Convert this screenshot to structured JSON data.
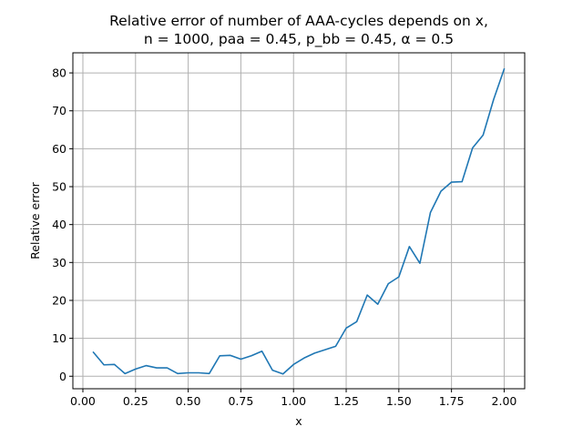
{
  "chart_data": {
    "type": "line",
    "title_lines": [
      "Relative error of number of AAA-cycles depends on x,",
      "n = 1000, paa = 0.45, p_bb = 0.45, α = 0.5"
    ],
    "xlabel": "x",
    "ylabel": "Relative error",
    "xlim": [
      -0.0475,
      2.0975
    ],
    "ylim": [
      -3.3,
      85.3
    ],
    "x_ticks": [
      0.0,
      0.25,
      0.5,
      0.75,
      1.0,
      1.25,
      1.5,
      1.75,
      2.0
    ],
    "x_tick_labels": [
      "0.00",
      "0.25",
      "0.50",
      "0.75",
      "1.00",
      "1.25",
      "1.50",
      "1.75",
      "2.00"
    ],
    "y_ticks": [
      0,
      10,
      20,
      30,
      40,
      50,
      60,
      70,
      80
    ],
    "y_tick_labels": [
      "0",
      "10",
      "20",
      "30",
      "40",
      "50",
      "60",
      "70",
      "80"
    ],
    "grid": true,
    "line_color": "#1f77b4",
    "series": [
      {
        "x": [
          0.05,
          0.1,
          0.15,
          0.2,
          0.25,
          0.3,
          0.35,
          0.4,
          0.45,
          0.5,
          0.55,
          0.6,
          0.65,
          0.7,
          0.75,
          0.8,
          0.85,
          0.9,
          0.95,
          1.0,
          1.05,
          1.1,
          1.15,
          1.2,
          1.25,
          1.3,
          1.35,
          1.4,
          1.45,
          1.5,
          1.55,
          1.6,
          1.65,
          1.7,
          1.75,
          1.8,
          1.85,
          1.9,
          1.95,
          2.0
        ],
        "y": [
          6.3,
          3.0,
          3.1,
          0.7,
          1.9,
          2.8,
          2.2,
          2.2,
          0.7,
          0.9,
          0.9,
          0.7,
          5.4,
          5.5,
          4.5,
          5.4,
          6.6,
          1.6,
          0.6,
          3.1,
          4.8,
          6.1,
          7.0,
          7.9,
          12.7,
          14.4,
          21.4,
          19.0,
          24.4,
          26.2,
          34.2,
          29.8,
          43.2,
          48.8,
          51.2,
          51.3,
          60.2,
          63.6,
          73.0,
          81.0
        ]
      }
    ]
  }
}
